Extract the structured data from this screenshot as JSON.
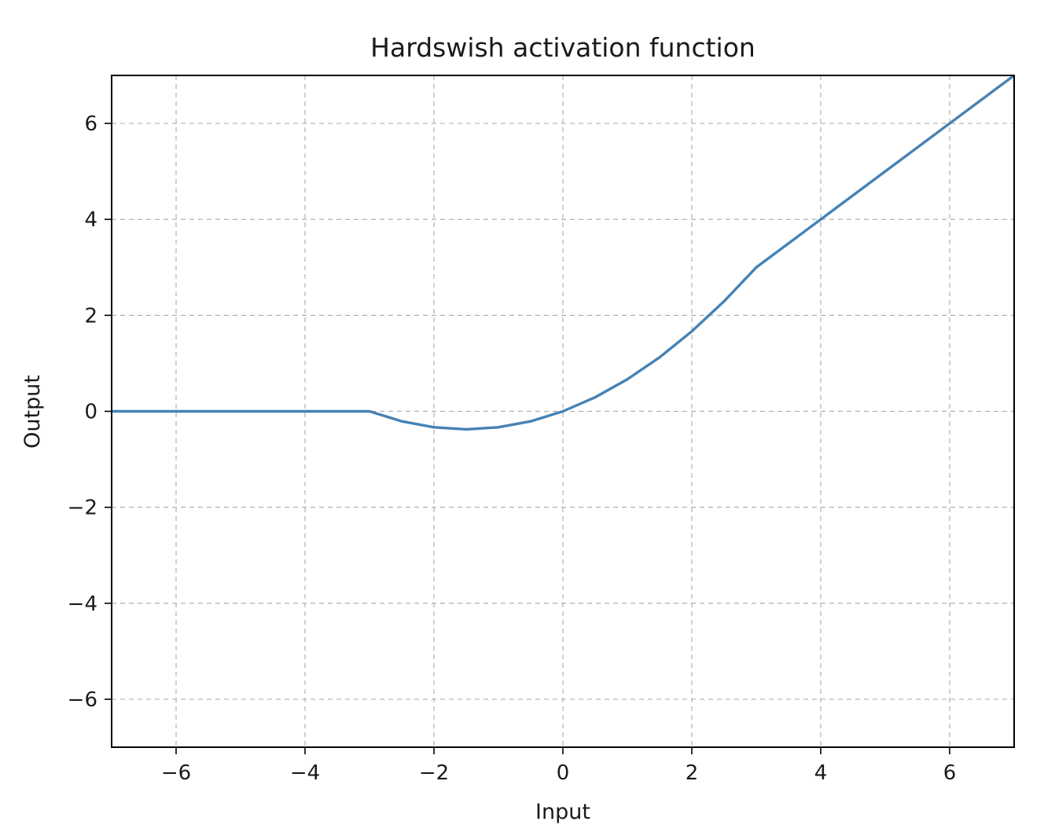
{
  "chart_data": {
    "type": "line",
    "title": "Hardswish activation function",
    "xlabel": "Input",
    "ylabel": "Output",
    "xlim": [
      -7,
      7
    ],
    "ylim": [
      -7,
      7
    ],
    "xticks": [
      -6,
      -4,
      -2,
      0,
      2,
      4,
      6
    ],
    "yticks": [
      -6,
      -4,
      -2,
      0,
      2,
      4,
      6
    ],
    "xtick_labels": [
      "−6",
      "−4",
      "−2",
      "0",
      "2",
      "4",
      "6"
    ],
    "ytick_labels": [
      "−6",
      "−4",
      "−2",
      "0",
      "2",
      "4",
      "6"
    ],
    "grid": true,
    "line_color": "#4682b4",
    "series": [
      {
        "x": [
          -7,
          -6,
          -5,
          -4,
          -3,
          -2.5,
          -2,
          -1.5,
          -1,
          -0.5,
          0,
          0.5,
          1,
          1.5,
          2,
          2.5,
          3,
          4,
          5,
          6,
          7
        ],
        "y": [
          0,
          0,
          0,
          0,
          0,
          -0.208,
          -0.333,
          -0.375,
          -0.333,
          -0.208,
          0,
          0.292,
          0.667,
          1.125,
          1.667,
          2.292,
          3,
          4,
          5,
          6,
          7
        ]
      }
    ]
  }
}
